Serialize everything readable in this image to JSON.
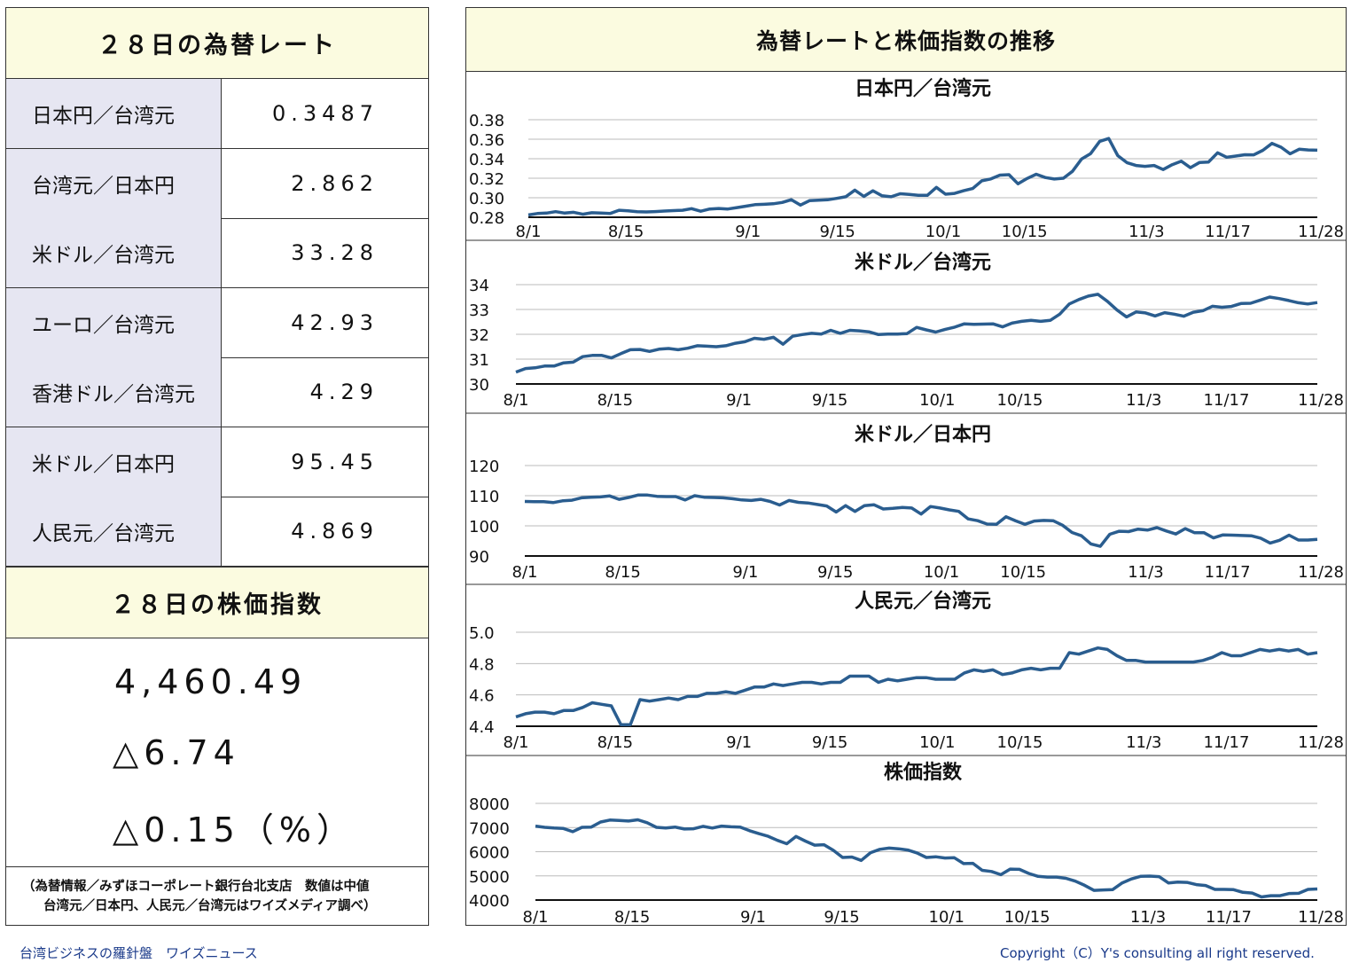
{
  "rates": {
    "title": "２８日の為替レート",
    "items": [
      {
        "label": "日本円／台湾元",
        "value": "0.3487"
      },
      {
        "label": "台湾元／日本円",
        "value": "2.862"
      },
      {
        "label": "米ドル／台湾元",
        "value": "33.28"
      },
      {
        "label": "ユーロ／台湾元",
        "value": "42.93"
      },
      {
        "label": "香港ドル／台湾元",
        "value": "4.29"
      },
      {
        "label": "米ドル／日本円",
        "value": "95.45"
      },
      {
        "label": "人民元／台湾元",
        "value": "4.869"
      }
    ]
  },
  "stock": {
    "title": "２８日の株価指数",
    "index": "4,460.49",
    "change": "△6.74",
    "change_pct": "△0.15（%）"
  },
  "note": {
    "line1": "（為替情報／みずほコーポレート銀行台北支店　数値は中値",
    "line2": "台湾元／日本円、人民元／台湾元はワイズメディア調べ）"
  },
  "footer": {
    "left": "台湾ビジネスの羅針盤　ワイズニュース",
    "right": "Copyright（C）Y's consulting all right reserved."
  },
  "charts_title": "為替レートと株価指数の推移",
  "colors": {
    "line": "#2a5d8f",
    "header_bg": "#fbfbe0",
    "label_bg": "#e6e6f2",
    "footer_text": "#1a3a8a"
  },
  "chart_data": [
    {
      "type": "line",
      "title": "日本円／台湾元",
      "x_ticks": [
        "8/1",
        "8/15",
        "9/1",
        "9/15",
        "10/1",
        "10/15",
        "11/3",
        "11/17",
        "11/28"
      ],
      "x_tick_index": [
        0,
        12,
        27,
        38,
        51,
        61,
        76,
        86,
        97
      ],
      "y_ticks": [
        "0.28",
        "0.30",
        "0.32",
        "0.34",
        "0.36",
        "0.38"
      ],
      "ylim": [
        0.28,
        0.38
      ],
      "values": [
        0.2824,
        0.2838,
        0.2843,
        0.2857,
        0.2843,
        0.2851,
        0.2831,
        0.2846,
        0.2843,
        0.2838,
        0.2872,
        0.2866,
        0.2857,
        0.2855,
        0.2858,
        0.2864,
        0.2868,
        0.2872,
        0.2888,
        0.2862,
        0.2885,
        0.289,
        0.2885,
        0.2899,
        0.2914,
        0.2929,
        0.2933,
        0.2938,
        0.2952,
        0.298,
        0.2925,
        0.297,
        0.2975,
        0.2979,
        0.2994,
        0.301,
        0.3078,
        0.3014,
        0.3072,
        0.302,
        0.301,
        0.3041,
        0.3035,
        0.3025,
        0.3025,
        0.3106,
        0.3036,
        0.3045,
        0.3072,
        0.3095,
        0.3174,
        0.3193,
        0.3232,
        0.3236,
        0.3143,
        0.3197,
        0.3241,
        0.3207,
        0.3192,
        0.32,
        0.3271,
        0.3396,
        0.3453,
        0.3578,
        0.3607,
        0.3432,
        0.336,
        0.3331,
        0.3322,
        0.3331,
        0.3289,
        0.3339,
        0.3375,
        0.3308,
        0.3361,
        0.3365,
        0.3461,
        0.3415,
        0.3427,
        0.3441,
        0.344,
        0.3486,
        0.3557,
        0.3518,
        0.3451,
        0.3497,
        0.349,
        0.3487
      ]
    },
    {
      "type": "line",
      "title": "米ドル／台湾元",
      "x_ticks": [
        "8/1",
        "8/15",
        "9/1",
        "9/15",
        "10/1",
        "10/15",
        "11/3",
        "11/17",
        "11/28"
      ],
      "x_tick_index": [
        0,
        12,
        27,
        38,
        51,
        61,
        76,
        86,
        97
      ],
      "y_ticks": [
        "30",
        "31",
        "32",
        "33",
        "34"
      ],
      "ylim": [
        30,
        34
      ],
      "values": [
        30.48,
        30.62,
        30.65,
        30.72,
        30.72,
        30.85,
        30.88,
        31.1,
        31.15,
        31.15,
        31.05,
        31.22,
        31.38,
        31.39,
        31.31,
        31.4,
        31.43,
        31.38,
        31.44,
        31.54,
        31.52,
        31.5,
        31.54,
        31.64,
        31.7,
        31.84,
        31.8,
        31.88,
        31.6,
        31.92,
        31.99,
        32.04,
        32.01,
        32.16,
        32.04,
        32.16,
        32.14,
        32.1,
        31.99,
        32.01,
        32.01,
        32.03,
        32.28,
        32.18,
        32.09,
        32.2,
        32.29,
        32.42,
        32.4,
        32.41,
        32.42,
        32.3,
        32.45,
        32.52,
        32.56,
        32.52,
        32.56,
        32.81,
        33.22,
        33.4,
        33.54,
        33.61,
        33.33,
        32.98,
        32.7,
        32.9,
        32.86,
        32.74,
        32.87,
        32.81,
        32.73,
        32.89,
        32.95,
        33.13,
        33.09,
        33.12,
        33.24,
        33.25,
        33.37,
        33.5,
        33.44,
        33.36,
        33.27,
        33.22,
        33.28
      ]
    },
    {
      "type": "line",
      "title": "米ドル／日本円",
      "x_ticks": [
        "8/1",
        "8/15",
        "9/1",
        "9/15",
        "10/1",
        "10/15",
        "11/3",
        "11/17",
        "11/28"
      ],
      "x_tick_index": [
        0,
        12,
        27,
        38,
        51,
        61,
        76,
        86,
        97
      ],
      "y_ticks": [
        "90",
        "100",
        "110",
        "120"
      ],
      "ylim": [
        90,
        120
      ],
      "values": [
        108.1,
        108.0,
        108.0,
        107.7,
        108.3,
        108.5,
        109.3,
        109.5,
        109.6,
        109.9,
        108.8,
        109.4,
        110.2,
        110.2,
        109.8,
        109.7,
        109.7,
        108.6,
        110.0,
        109.5,
        109.4,
        109.3,
        109.0,
        108.6,
        108.4,
        108.8,
        108.1,
        106.9,
        108.4,
        107.8,
        107.6,
        107.1,
        106.6,
        104.6,
        106.7,
        104.8,
        106.7,
        107.0,
        105.6,
        105.8,
        106.1,
        105.9,
        103.9,
        106.4,
        105.9,
        105.3,
        104.8,
        102.3,
        101.7,
        100.6,
        100.5,
        103.0,
        101.7,
        100.5,
        101.6,
        101.8,
        101.7,
        100.2,
        97.8,
        96.7,
        94.0,
        93.2,
        97.2,
        98.2,
        98.1,
        98.9,
        98.6,
        99.4,
        98.3,
        97.3,
        99.1,
        97.7,
        97.7,
        96.0,
        97.0,
        96.9,
        96.8,
        96.7,
        95.9,
        94.3,
        95.2,
        96.9,
        95.3,
        95.3,
        95.5
      ]
    },
    {
      "type": "line",
      "title": "人民元／台湾元",
      "x_ticks": [
        "8/1",
        "8/15",
        "9/1",
        "9/15",
        "10/1",
        "10/15",
        "11/3",
        "11/17",
        "11/28"
      ],
      "x_tick_index": [
        0,
        12,
        27,
        38,
        51,
        61,
        76,
        86,
        97
      ],
      "y_ticks": [
        "4.4",
        "4.6",
        "4.8",
        "5.0"
      ],
      "ylim": [
        4.4,
        5.0
      ],
      "values": [
        4.46,
        4.48,
        4.49,
        4.49,
        4.48,
        4.5,
        4.5,
        4.52,
        4.55,
        4.54,
        4.53,
        4.41,
        4.41,
        4.57,
        4.56,
        4.57,
        4.58,
        4.57,
        4.59,
        4.59,
        4.61,
        4.61,
        4.62,
        4.61,
        4.63,
        4.65,
        4.65,
        4.67,
        4.66,
        4.67,
        4.68,
        4.68,
        4.67,
        4.68,
        4.68,
        4.72,
        4.72,
        4.72,
        4.68,
        4.7,
        4.69,
        4.7,
        4.71,
        4.71,
        4.7,
        4.7,
        4.7,
        4.74,
        4.76,
        4.75,
        4.76,
        4.73,
        4.74,
        4.76,
        4.77,
        4.76,
        4.77,
        4.77,
        4.87,
        4.86,
        4.88,
        4.9,
        4.89,
        4.85,
        4.82,
        4.82,
        4.81,
        4.81,
        4.81,
        4.81,
        4.81,
        4.81,
        4.82,
        4.84,
        4.87,
        4.85,
        4.85,
        4.87,
        4.89,
        4.88,
        4.89,
        4.88,
        4.89,
        4.86,
        4.87
      ]
    },
    {
      "type": "line",
      "title": "株価指数",
      "x_ticks": [
        "8/1",
        "8/15",
        "9/1",
        "9/15",
        "10/1",
        "10/15",
        "11/3",
        "11/17",
        "11/28"
      ],
      "x_tick_index": [
        0,
        12,
        27,
        38,
        51,
        61,
        76,
        86,
        97
      ],
      "y_ticks": [
        "4000",
        "5000",
        "6000",
        "7000",
        "8000"
      ],
      "ylim": [
        4000,
        8000
      ],
      "values": [
        7060,
        7010,
        6980,
        6960,
        6830,
        7010,
        7020,
        7230,
        7310,
        7290,
        7270,
        7320,
        7200,
        7010,
        6980,
        7020,
        6940,
        6950,
        7050,
        6980,
        7060,
        7030,
        7020,
        6870,
        6750,
        6640,
        6470,
        6330,
        6630,
        6440,
        6270,
        6290,
        6060,
        5760,
        5780,
        5640,
        5960,
        6100,
        6150,
        6120,
        6070,
        5950,
        5760,
        5790,
        5740,
        5750,
        5510,
        5520,
        5230,
        5180,
        5050,
        5280,
        5270,
        5100,
        4980,
        4950,
        4950,
        4900,
        4780,
        4610,
        4400,
        4420,
        4430,
        4700,
        4870,
        4980,
        4990,
        4970,
        4710,
        4740,
        4730,
        4640,
        4600,
        4440,
        4440,
        4430,
        4320,
        4290,
        4130,
        4180,
        4180,
        4270,
        4280,
        4440,
        4460
      ]
    }
  ]
}
